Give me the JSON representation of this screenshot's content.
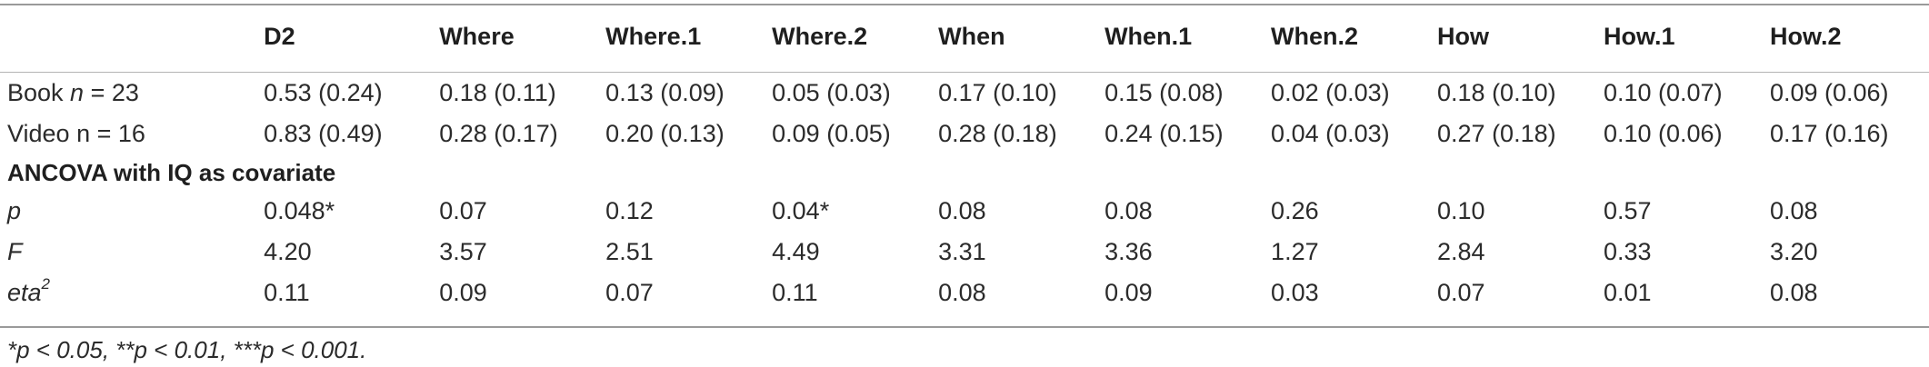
{
  "columns": [
    "",
    "D2",
    "Where",
    "Where.1",
    "Where.2",
    "When",
    "When.1",
    "When.2",
    "How",
    "How.1",
    "How.2"
  ],
  "rows": {
    "book": {
      "label_prefix": "Book ",
      "label_italic": "n",
      "label_suffix": " = 23",
      "values": [
        "0.53 (0.24)",
        "0.18 (0.11)",
        "0.13 (0.09)",
        "0.05 (0.03)",
        "0.17 (0.10)",
        "0.15 (0.08)",
        "0.02 (0.03)",
        "0.18 (0.10)",
        "0.10 (0.07)",
        "0.09 (0.06)"
      ]
    },
    "video": {
      "label": "Video n = 16",
      "values": [
        "0.83 (0.49)",
        "0.28 (0.17)",
        "0.20 (0.13)",
        "0.09 (0.05)",
        "0.28 (0.18)",
        "0.24 (0.15)",
        "0.04 (0.03)",
        "0.27 (0.18)",
        "0.10 (0.06)",
        "0.17 (0.16)"
      ]
    },
    "section_heading": "ANCOVA with IQ as covariate",
    "p": {
      "label": "p",
      "values": [
        "0.048*",
        "0.07",
        "0.12",
        "0.04*",
        "0.08",
        "0.08",
        "0.26",
        "0.10",
        "0.57",
        "0.08"
      ]
    },
    "F": {
      "label": "F",
      "values": [
        "4.20",
        "3.57",
        "2.51",
        "4.49",
        "3.31",
        "3.36",
        "1.27",
        "2.84",
        "0.33",
        "3.20"
      ]
    },
    "eta": {
      "label": "eta",
      "sup": "2",
      "values": [
        "0.11",
        "0.09",
        "0.07",
        "0.11",
        "0.08",
        "0.09",
        "0.03",
        "0.07",
        "0.01",
        "0.08"
      ]
    }
  },
  "footnote": "*p < 0.05, **p < 0.01, ***p < 0.001."
}
